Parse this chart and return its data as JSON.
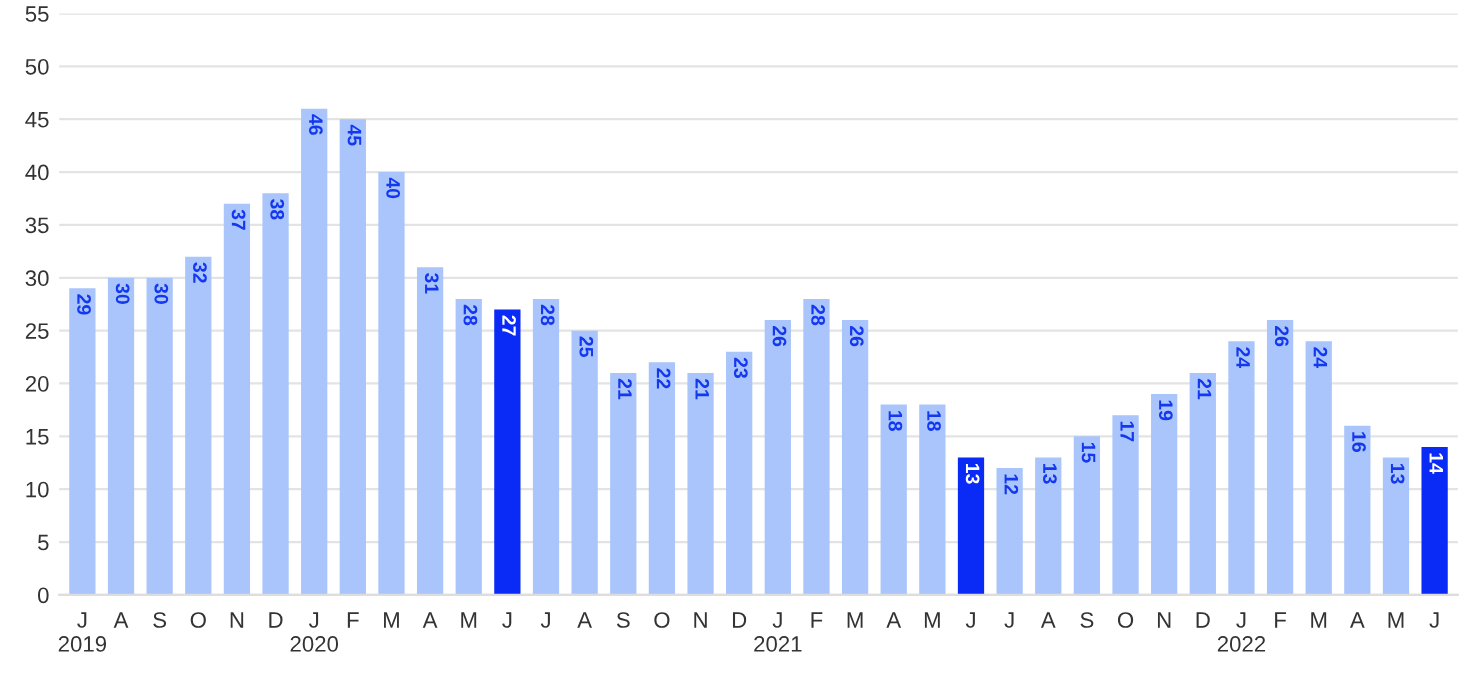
{
  "chart_data": {
    "type": "bar",
    "categories": [
      "J\n2019",
      "A",
      "S",
      "O",
      "N",
      "D",
      "J\n2020",
      "F",
      "M",
      "A",
      "M",
      "J",
      "J",
      "A",
      "S",
      "O",
      "N",
      "D",
      "J\n2021",
      "F",
      "M",
      "A",
      "M",
      "J",
      "J",
      "A",
      "S",
      "O",
      "N",
      "D",
      "J\n2022",
      "F",
      "M",
      "A",
      "M",
      "J"
    ],
    "values": [
      29,
      30,
      30,
      32,
      37,
      38,
      46,
      45,
      40,
      31,
      28,
      27,
      28,
      25,
      21,
      22,
      21,
      23,
      26,
      28,
      26,
      18,
      18,
      13,
      12,
      13,
      15,
      17,
      19,
      21,
      24,
      26,
      24,
      16,
      13,
      14
    ],
    "colors": [
      "#a9c5fb",
      "#a9c5fb",
      "#a9c5fb",
      "#a9c5fb",
      "#a9c5fb",
      "#a9c5fb",
      "#a9c5fb",
      "#a9c5fb",
      "#a9c5fb",
      "#a9c5fb",
      "#a9c5fb",
      "#0a2af5",
      "#a9c5fb",
      "#a9c5fb",
      "#a9c5fb",
      "#a9c5fb",
      "#a9c5fb",
      "#a9c5fb",
      "#a9c5fb",
      "#a9c5fb",
      "#a9c5fb",
      "#a9c5fb",
      "#a9c5fb",
      "#0a2af5",
      "#a9c5fb",
      "#a9c5fb",
      "#a9c5fb",
      "#a9c5fb",
      "#a9c5fb",
      "#a9c5fb",
      "#a9c5fb",
      "#a9c5fb",
      "#a9c5fb",
      "#a9c5fb",
      "#a9c5fb",
      "#0a2af5"
    ],
    "ylim": [
      0,
      55
    ],
    "yticks": [
      0,
      5,
      10,
      15,
      20,
      25,
      30,
      35,
      40,
      45,
      50,
      55
    ],
    "grid": "y",
    "data_labels": true
  }
}
